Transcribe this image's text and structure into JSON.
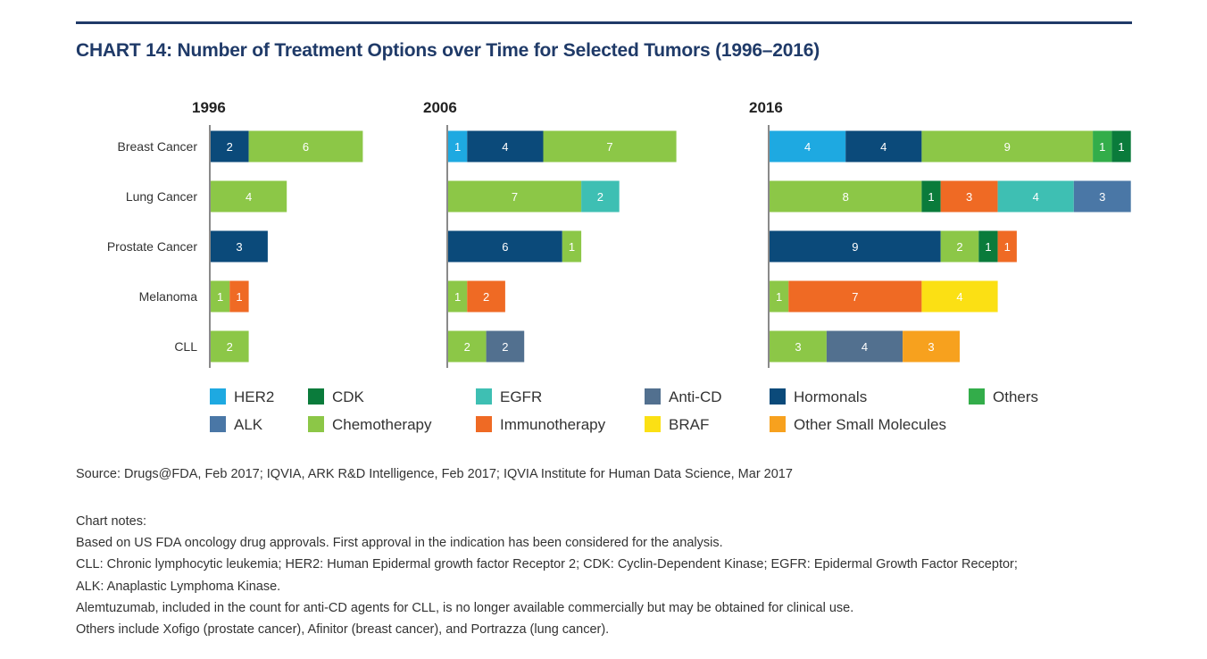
{
  "title": "CHART 14: Number of Treatment Options over Time for Selected Tumors (1996–2016)",
  "source": "Source: Drugs@FDA, Feb 2017; IQVIA, ARK R&D Intelligence, Feb 2017; IQVIA Institute for Human Data Science, Mar 2017",
  "notes": {
    "heading": "Chart notes:",
    "lines": [
      "Based on US FDA oncology drug approvals. First approval in the indication has been considered for the analysis.",
      "CLL: Chronic lymphocytic leukemia; HER2: Human Epidermal growth factor Receptor 2; CDK: Cyclin-Dependent Kinase; EGFR: Epidermal Growth Factor Receptor;",
      "ALK: Anaplastic Lymphoma Kinase.",
      "Alemtuzumab, included in the count for anti-CD agents for CLL, is no longer available commercially but may be obtained for clinical use.",
      "Others include Xofigo (prostate cancer), Afinitor (breast cancer), and Portrazza (lung cancer)."
    ]
  },
  "colors": {
    "HER2": "#1ea9e1",
    "CDK": "#0a7b3b",
    "EGFR": "#3ebfb3",
    "Anti-CD": "#52708f",
    "Hormonals": "#0b4a7a",
    "Others": "#33ad4a",
    "ALK": "#4a77a6",
    "Chemotherapy": "#8cc747",
    "Immunotherapy": "#ef6a24",
    "BRAF": "#fbe014",
    "Other Small Molecules": "#f7a11e"
  },
  "chart_data": {
    "type": "bar",
    "orientation": "horizontal-stacked",
    "categories": [
      "Breast Cancer",
      "Lung Cancer",
      "Prostate Cancer",
      "Melanoma",
      "CLL"
    ],
    "legend": {
      "position": "bottom",
      "rows": [
        [
          "HER2",
          "CDK",
          "EGFR",
          "Anti-CD",
          "Hormonals",
          "Others"
        ],
        [
          "ALK",
          "Chemotherapy",
          "Immunotherapy",
          "BRAF",
          "Other Small Molecules"
        ]
      ]
    },
    "grid": false,
    "panels": [
      {
        "year": "1996",
        "bars": [
          [
            {
              "class": "Hormonals",
              "value": 2
            },
            {
              "class": "Chemotherapy",
              "value": 6
            }
          ],
          [
            {
              "class": "Chemotherapy",
              "value": 4
            }
          ],
          [
            {
              "class": "Hormonals",
              "value": 3
            }
          ],
          [
            {
              "class": "Chemotherapy",
              "value": 1
            },
            {
              "class": "Immunotherapy",
              "value": 1
            }
          ],
          [
            {
              "class": "Chemotherapy",
              "value": 2
            }
          ]
        ]
      },
      {
        "year": "2006",
        "bars": [
          [
            {
              "class": "HER2",
              "value": 1
            },
            {
              "class": "Hormonals",
              "value": 4
            },
            {
              "class": "Chemotherapy",
              "value": 7
            }
          ],
          [
            {
              "class": "Chemotherapy",
              "value": 7
            },
            {
              "class": "EGFR",
              "value": 2
            }
          ],
          [
            {
              "class": "Hormonals",
              "value": 6
            },
            {
              "class": "Chemotherapy",
              "value": 1
            }
          ],
          [
            {
              "class": "Chemotherapy",
              "value": 1
            },
            {
              "class": "Immunotherapy",
              "value": 2
            }
          ],
          [
            {
              "class": "Chemotherapy",
              "value": 2
            },
            {
              "class": "Anti-CD",
              "value": 2
            }
          ]
        ]
      },
      {
        "year": "2016",
        "bars": [
          [
            {
              "class": "HER2",
              "value": 4
            },
            {
              "class": "Hormonals",
              "value": 4
            },
            {
              "class": "Chemotherapy",
              "value": 9
            },
            {
              "class": "Others",
              "value": 1
            },
            {
              "class": "CDK",
              "value": 1
            }
          ],
          [
            {
              "class": "Chemotherapy",
              "value": 8
            },
            {
              "class": "CDK",
              "value": 1
            },
            {
              "class": "Immunotherapy",
              "value": 3
            },
            {
              "class": "EGFR",
              "value": 4
            },
            {
              "class": "ALK",
              "value": 3
            }
          ],
          [
            {
              "class": "Hormonals",
              "value": 9
            },
            {
              "class": "Chemotherapy",
              "value": 2
            },
            {
              "class": "CDK",
              "value": 1
            },
            {
              "class": "Immunotherapy",
              "value": 1
            }
          ],
          [
            {
              "class": "Chemotherapy",
              "value": 1
            },
            {
              "class": "Immunotherapy",
              "value": 7
            },
            {
              "class": "BRAF",
              "value": 4
            }
          ],
          [
            {
              "class": "Chemotherapy",
              "value": 3
            },
            {
              "class": "Anti-CD",
              "value": 4
            },
            {
              "class": "Other Small Molecules",
              "value": 3
            }
          ]
        ]
      }
    ]
  }
}
